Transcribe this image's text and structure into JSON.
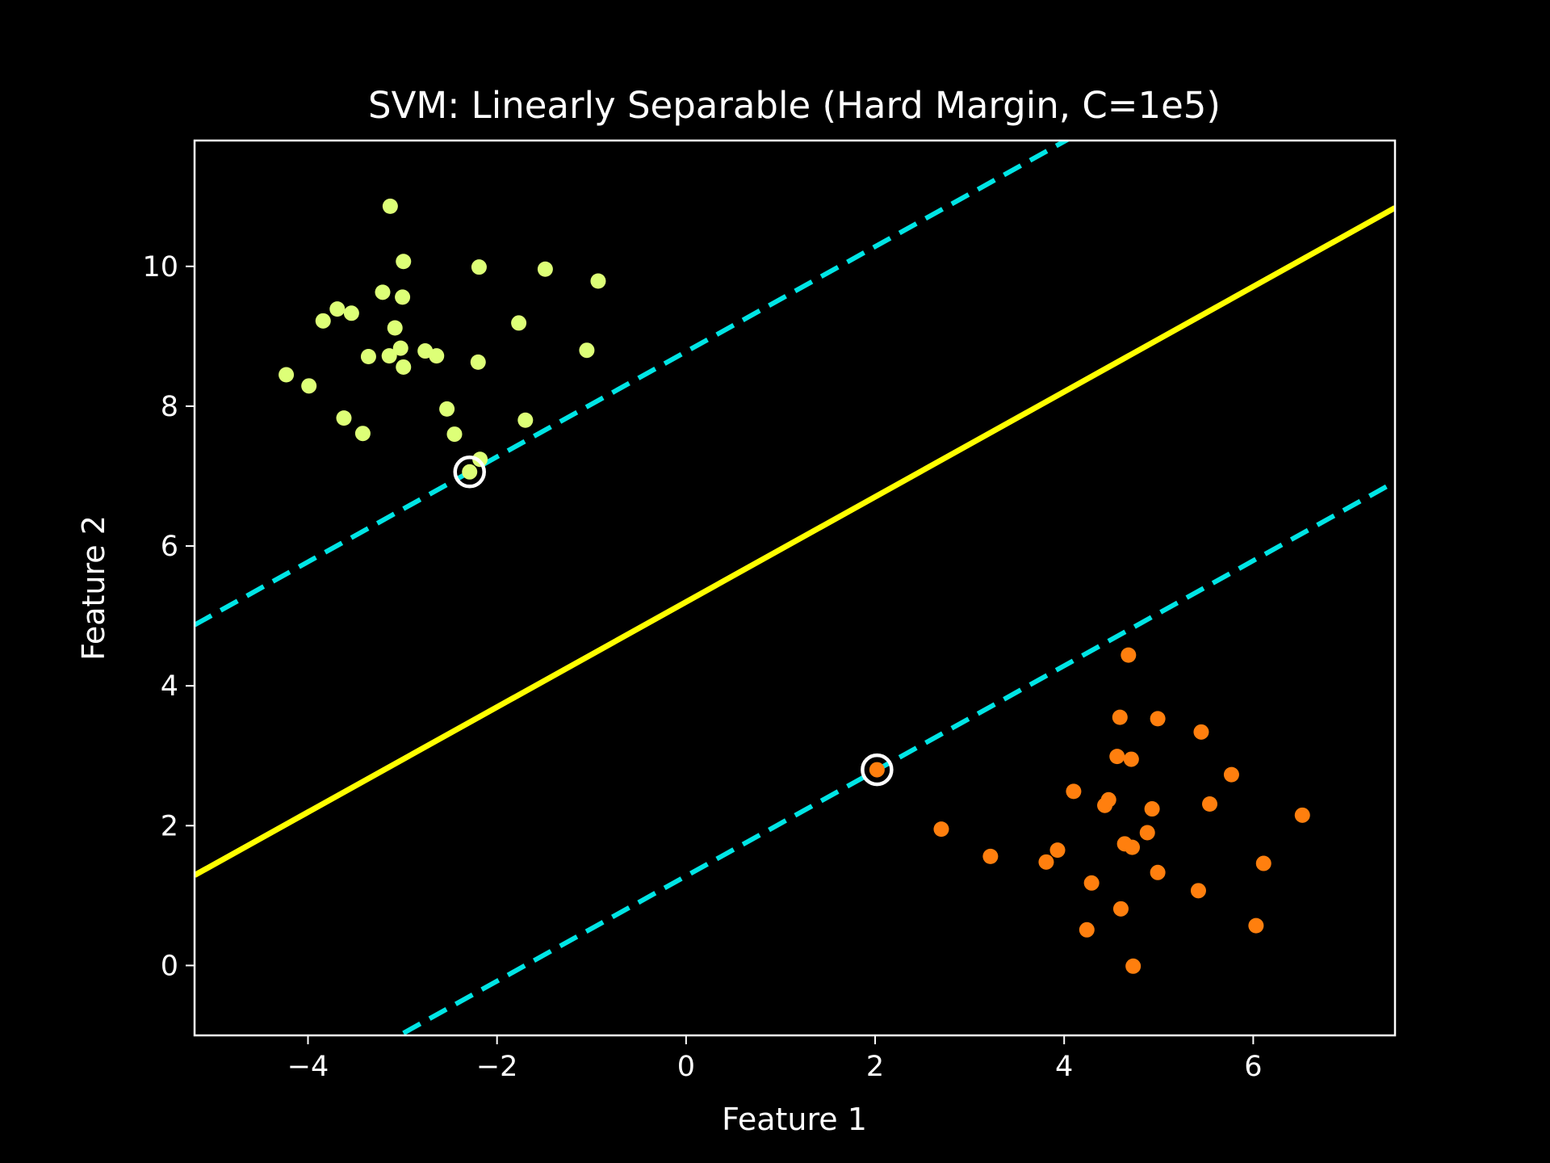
{
  "chart_data": {
    "type": "scatter",
    "title": "SVM: Linearly Separable (Hard Margin, C=1e5)",
    "xlabel": "Feature 1",
    "ylabel": "Feature 2",
    "xlim": [
      -5.2,
      7.5
    ],
    "ylim": [
      -1.0,
      11.8
    ],
    "grid": false,
    "background": "#000000",
    "x_ticks": [
      {
        "value": -4,
        "label": "−4"
      },
      {
        "value": -2,
        "label": "−2"
      },
      {
        "value": 0,
        "label": "0"
      },
      {
        "value": 2,
        "label": "2"
      },
      {
        "value": 4,
        "label": "4"
      },
      {
        "value": 6,
        "label": "6"
      }
    ],
    "y_ticks": [
      {
        "value": 0,
        "label": "0"
      },
      {
        "value": 2,
        "label": "2"
      },
      {
        "value": 4,
        "label": "4"
      },
      {
        "value": 6,
        "label": "6"
      },
      {
        "value": 8,
        "label": "8"
      },
      {
        "value": 10,
        "label": "10"
      }
    ],
    "series": [
      {
        "color": "#ddff77",
        "points": [
          [
            -3.13,
            10.86
          ],
          [
            -2.99,
            10.07
          ],
          [
            -2.19,
            9.99
          ],
          [
            -1.49,
            9.96
          ],
          [
            -0.93,
            9.79
          ],
          [
            -3.21,
            9.63
          ],
          [
            -3.0,
            9.56
          ],
          [
            -3.69,
            9.39
          ],
          [
            -3.54,
            9.33
          ],
          [
            -3.84,
            9.22
          ],
          [
            -1.77,
            9.19
          ],
          [
            -3.08,
            9.12
          ],
          [
            -3.02,
            8.83
          ],
          [
            -1.05,
            8.8
          ],
          [
            -2.76,
            8.79
          ],
          [
            -3.36,
            8.71
          ],
          [
            -3.14,
            8.72
          ],
          [
            -2.64,
            8.72
          ],
          [
            -2.2,
            8.63
          ],
          [
            -2.99,
            8.56
          ],
          [
            -4.23,
            8.45
          ],
          [
            -3.99,
            8.29
          ],
          [
            -2.53,
            7.96
          ],
          [
            -3.62,
            7.83
          ],
          [
            -1.7,
            7.8
          ],
          [
            -3.42,
            7.61
          ],
          [
            -2.45,
            7.6
          ],
          [
            -2.18,
            7.24
          ],
          [
            -2.29,
            7.06
          ]
        ]
      },
      {
        "color": "#ff7f0e",
        "points": [
          [
            4.68,
            4.44
          ],
          [
            4.59,
            3.55
          ],
          [
            4.99,
            3.53
          ],
          [
            5.45,
            3.34
          ],
          [
            4.56,
            2.99
          ],
          [
            4.71,
            2.95
          ],
          [
            5.77,
            2.73
          ],
          [
            4.1,
            2.49
          ],
          [
            4.47,
            2.37
          ],
          [
            4.43,
            2.29
          ],
          [
            4.93,
            2.24
          ],
          [
            5.54,
            2.31
          ],
          [
            6.52,
            2.15
          ],
          [
            2.7,
            1.95
          ],
          [
            4.88,
            1.9
          ],
          [
            4.64,
            1.74
          ],
          [
            4.72,
            1.69
          ],
          [
            3.93,
            1.65
          ],
          [
            3.22,
            1.56
          ],
          [
            3.81,
            1.48
          ],
          [
            6.11,
            1.46
          ],
          [
            4.99,
            1.33
          ],
          [
            4.29,
            1.18
          ],
          [
            5.42,
            1.07
          ],
          [
            4.6,
            0.81
          ],
          [
            6.03,
            0.57
          ],
          [
            4.24,
            0.51
          ],
          [
            4.73,
            -0.01
          ],
          [
            2.02,
            2.8
          ]
        ]
      }
    ],
    "support_vectors": [
      [
        -2.29,
        7.06
      ],
      [
        2.02,
        2.8
      ]
    ],
    "decision_boundary": {
      "slope": 0.7517,
      "intercept": 5.2,
      "color": "#ffff00",
      "style": "solid"
    },
    "margins": [
      {
        "slope": 0.7517,
        "intercept": 8.78,
        "color": "#00e5e5",
        "style": "dashed"
      },
      {
        "slope": 0.7517,
        "intercept": 1.28,
        "color": "#00e5e5",
        "style": "dashed"
      }
    ]
  }
}
